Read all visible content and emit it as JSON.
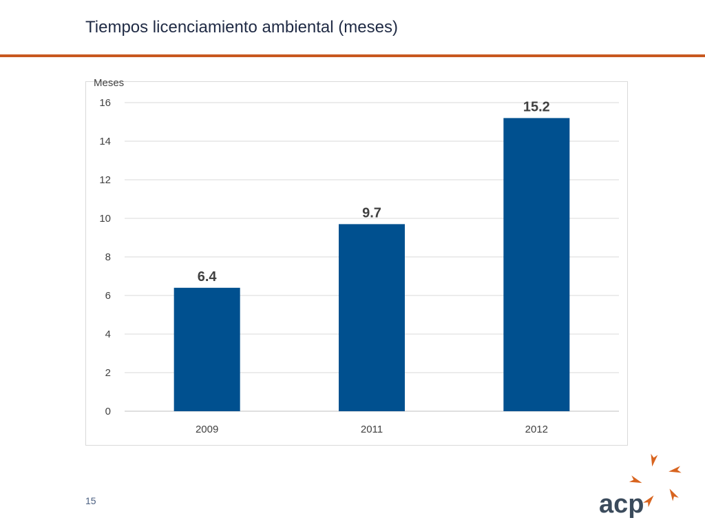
{
  "slide": {
    "title": "Tiempos licenciamiento ambiental (meses)",
    "page_number": "15",
    "logo_text": "acp"
  },
  "colors": {
    "accent_rule": "#c8581f",
    "bar": "#00508f",
    "title": "#1f2a44",
    "logo_text": "#3b4b5c",
    "logo_marks": "#d8641f"
  },
  "chart_data": {
    "type": "bar",
    "categories": [
      "2009",
      "2011",
      "2012"
    ],
    "values": [
      6.4,
      9.7,
      15.2
    ],
    "value_labels": [
      "6.4",
      "9.7",
      "15.2"
    ],
    "ylabel": "Meses",
    "ylim": [
      0,
      16
    ],
    "yticks": [
      0,
      2,
      4,
      6,
      8,
      10,
      12,
      14,
      16
    ],
    "grid": true,
    "legend": "none"
  }
}
